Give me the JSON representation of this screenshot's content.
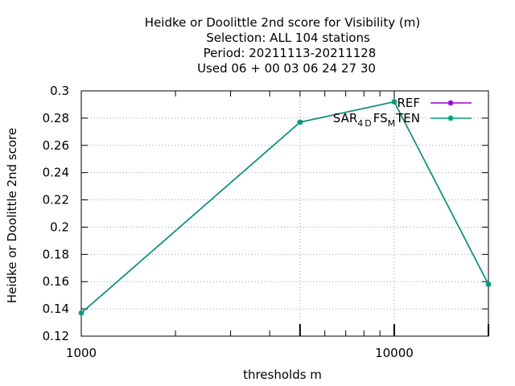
{
  "chart_data": {
    "type": "line",
    "title_lines": [
      "Heidke or Doolittle 2nd score  for Visibility (m)",
      "Selection: ALL    104 stations",
      "Period: 20211113-20211128",
      "Used  06 + 00 03 06 24 27 30"
    ],
    "xlabel": "thresholds m",
    "ylabel": "Heidke or Doolittle 2nd score",
    "x_scale": "log",
    "xlim": [
      1000,
      20000
    ],
    "ylim": [
      0.12,
      0.3
    ],
    "x_ticks": [
      1000,
      10000
    ],
    "x_tick_labels": [
      "1000",
      "10000"
    ],
    "y_ticks": [
      0.12,
      0.14,
      0.16,
      0.18,
      0.2,
      0.22,
      0.24,
      0.26,
      0.28,
      0.3
    ],
    "y_tick_labels": [
      "0.12",
      "0.14",
      "0.16",
      "0.18",
      "0.2",
      "0.22",
      "0.24",
      "0.26",
      "0.28",
      "0.3"
    ],
    "grid": true,
    "legend_position": "top-right",
    "series": [
      {
        "name": "REF",
        "color": "#9400d3",
        "x": [
          1000,
          5000,
          10000,
          20000
        ],
        "values": [
          0.137,
          0.277,
          0.292,
          0.158
        ]
      },
      {
        "name_parts": [
          "SAR",
          "4",
          "D",
          "FS",
          "M",
          "TEN"
        ],
        "color": "#009e73",
        "x": [
          1000,
          5000,
          10000,
          20000
        ],
        "values": [
          0.137,
          0.277,
          0.292,
          0.158
        ]
      }
    ]
  }
}
